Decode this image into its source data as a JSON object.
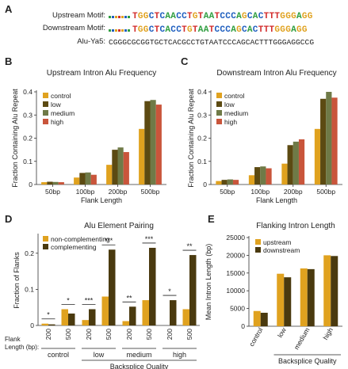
{
  "colors": {
    "control": "#e0a21f",
    "low": "#5c4a12",
    "medium": "#6f7a47",
    "high": "#c9553b",
    "upstream": "#e0a21f",
    "downstream": "#4a3a0f",
    "noncomp": "#e0a21f",
    "comp": "#4a3a0f"
  },
  "panelA": {
    "letter": "A",
    "up_label": "Upstream Motif:",
    "down_label": "Downstream Motif:",
    "alu_label": "Alu-Ya5:",
    "up_seq": "TGGCTCA ACCTGTAATCCCAGCACTTTGGGAGG",
    "down_seq": "TGGCTCA CCTGTAATCCCAGCACTTTGGGAGG",
    "alu_seq": "CGGGCGCGGTGCTCACGCCTGTAATCCCAGCACTTTGGGAGGCCG",
    "logo_palette": [
      "#2f9e3f",
      "#1f5fbf",
      "#e0a21f",
      "#d22a2a"
    ]
  },
  "chart_data": [
    {
      "id": "B",
      "letter": "B",
      "type": "bar",
      "title": "Upstream Intron Alu Frequency",
      "xlabel": "Flank Length",
      "ylabel": "Fraction Containing Alu Repeat",
      "categories": [
        "50bp",
        "100bp",
        "200bp",
        "500bp"
      ],
      "series": [
        {
          "name": "control",
          "color": "#e0a21f",
          "values": [
            0.01,
            0.03,
            0.085,
            0.24
          ]
        },
        {
          "name": "low",
          "color": "#5c4a12",
          "values": [
            0.012,
            0.05,
            0.15,
            0.36
          ]
        },
        {
          "name": "medium",
          "color": "#6f7a47",
          "values": [
            0.011,
            0.052,
            0.16,
            0.365
          ]
        },
        {
          "name": "high",
          "color": "#c9553b",
          "values": [
            0.01,
            0.042,
            0.14,
            0.345
          ]
        }
      ],
      "ylim": [
        0,
        0.4
      ],
      "yticks": [
        "0",
        "0.1",
        "0.2",
        "0.3",
        "0.4"
      ],
      "legend": "top-left"
    },
    {
      "id": "C",
      "letter": "C",
      "type": "bar",
      "title": "Downstream Intron Alu Frequency",
      "xlabel": "Flank Length",
      "ylabel": "Fraction Containing Alu Repeat",
      "categories": [
        "50bp",
        "100bp",
        "200bp",
        "500bp"
      ],
      "series": [
        {
          "name": "control",
          "color": "#e0a21f",
          "values": [
            0.015,
            0.04,
            0.09,
            0.24
          ]
        },
        {
          "name": "low",
          "color": "#5c4a12",
          "values": [
            0.02,
            0.075,
            0.17,
            0.37
          ]
        },
        {
          "name": "medium",
          "color": "#6f7a47",
          "values": [
            0.022,
            0.078,
            0.185,
            0.4
          ]
        },
        {
          "name": "high",
          "color": "#c9553b",
          "values": [
            0.02,
            0.07,
            0.195,
            0.375
          ]
        }
      ],
      "ylim": [
        0,
        0.4
      ],
      "yticks": [
        "0",
        "0.1",
        "0.2",
        "0.3",
        "0.4"
      ],
      "legend": "top-left"
    },
    {
      "id": "D",
      "letter": "D",
      "type": "bar",
      "title": "Alu Element Pairing",
      "ylabel": "Fraction of Flanks",
      "xlabel": "Backsplice Quality",
      "flank_axis_label": "Flank\nLength (bp):",
      "groups": [
        "control",
        "low",
        "medium",
        "high"
      ],
      "flank_lengths": [
        "200",
        "500"
      ],
      "series": [
        {
          "name": "non-complementing",
          "color": "#e0a21f",
          "values": [
            0.005,
            0.045,
            0.015,
            0.08,
            0.012,
            0.07,
            0.0,
            0.045
          ]
        },
        {
          "name": "complementing",
          "color": "#4a3a0f",
          "values": [
            0.003,
            0.033,
            0.045,
            0.21,
            0.052,
            0.215,
            0.07,
            0.195
          ]
        }
      ],
      "significance": [
        "*",
        "*",
        "***",
        "***",
        "**",
        "***",
        "*",
        "**"
      ],
      "ylim": [
        0,
        0.25
      ],
      "yticks": [
        "0",
        "0.1",
        "0.2"
      ],
      "legend": "top-left"
    },
    {
      "id": "E",
      "letter": "E",
      "type": "bar",
      "title": "Flanking Intron Length",
      "xlabel": "Backsplice Quality",
      "ylabel": "Mean Intron Length (bp)",
      "categories": [
        "control",
        "low",
        "medium",
        "high"
      ],
      "series": [
        {
          "name": "upstream",
          "color": "#e0a21f",
          "values": [
            4300,
            14800,
            16300,
            20000
          ]
        },
        {
          "name": "downstream",
          "color": "#4a3a0f",
          "values": [
            3800,
            13800,
            16100,
            19800
          ]
        }
      ],
      "ylim": [
        0,
        25000
      ],
      "yticks": [
        "0",
        "5000",
        "10000",
        "15000",
        "20000",
        "25000"
      ],
      "legend": "top-left"
    }
  ]
}
